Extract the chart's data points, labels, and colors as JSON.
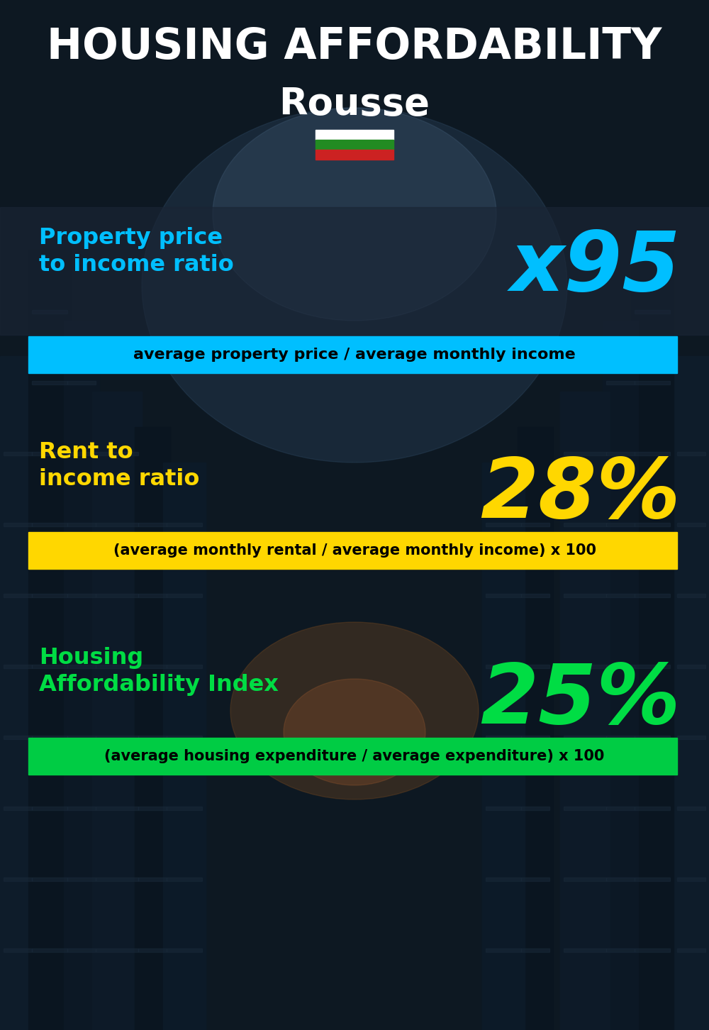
{
  "title_line1": "HOUSING AFFORDABILITY",
  "title_line2": "Rousse",
  "background_color": "#0d1b2a",
  "section1_label": "Property price\nto income ratio",
  "section1_value": "x95",
  "section1_label_color": "#00bfff",
  "section1_value_color": "#00bfff",
  "section1_banner_text": "average property price / average monthly income",
  "section1_banner_bg": "#00bfff",
  "section1_banner_text_color": "#000000",
  "section2_label": "Rent to\nincome ratio",
  "section2_value": "28%",
  "section2_label_color": "#ffd700",
  "section2_value_color": "#ffd700",
  "section2_banner_text": "(average monthly rental / average monthly income) x 100",
  "section2_banner_bg": "#ffd700",
  "section2_banner_text_color": "#000000",
  "section3_label": "Housing\nAffordability Index",
  "section3_value": "25%",
  "section3_label_color": "#00dd44",
  "section3_value_color": "#00dd44",
  "section3_banner_text": "(average housing expenditure / average expenditure) x 100",
  "section3_banner_bg": "#00cc44",
  "section3_banner_text_color": "#000000",
  "title_color": "#ffffff",
  "flag_white": "#ffffff",
  "flag_green": "#228B22",
  "flag_red": "#cc2222",
  "overlay_color": "#1a2535",
  "overlay_alpha": 0.65
}
